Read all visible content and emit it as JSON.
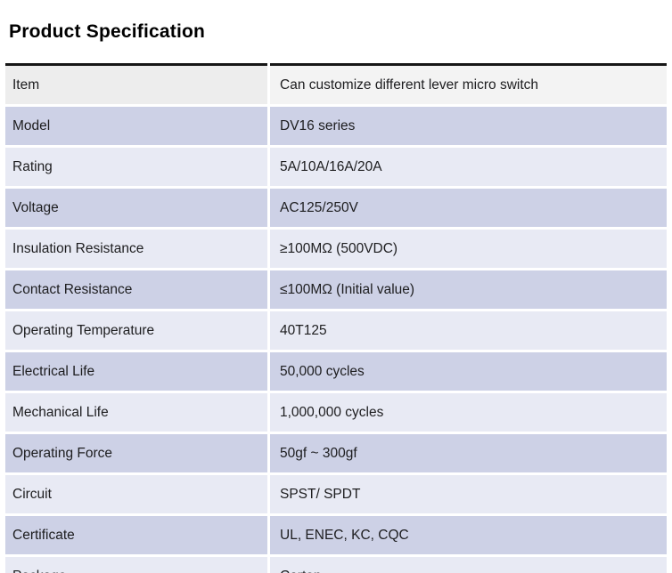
{
  "title": "Product Specification",
  "table": {
    "rows": [
      {
        "label": "Item",
        "value": "Can customize different lever micro switch"
      },
      {
        "label": "Model",
        "value": "DV16 series"
      },
      {
        "label": "Rating",
        "value": "5A/10A/16A/20A"
      },
      {
        "label": "Voltage",
        "value": "AC125/250V"
      },
      {
        "label": "Insulation Resistance",
        "value": "≥100MΩ (500VDC)"
      },
      {
        "label": "Contact Resistance",
        "value": "≤100MΩ (Initial value)"
      },
      {
        "label": "Operating Temperature",
        "value": "40T125"
      },
      {
        "label": "Electrical Life",
        "value": "50,000 cycles"
      },
      {
        "label": "Mechanical Life",
        "value": "1,000,000 cycles"
      },
      {
        "label": "Operating Force",
        "value": "50gf ~ 300gf"
      },
      {
        "label": "Circuit",
        "value": "SPST/ SPDT"
      },
      {
        "label": "Certificate",
        "value": "UL, ENEC, KC, CQC"
      },
      {
        "label": "Package",
        "value": "Carton"
      }
    ]
  },
  "colors": {
    "band_blue": "#cdd1e6",
    "band_light": "#e8eaf4",
    "header_gray_left": "#ededed",
    "header_gray_right": "#f3f3f3",
    "top_rule": "#161616",
    "bottom_rule": "#1f3864",
    "text": "#1d1d1f"
  }
}
